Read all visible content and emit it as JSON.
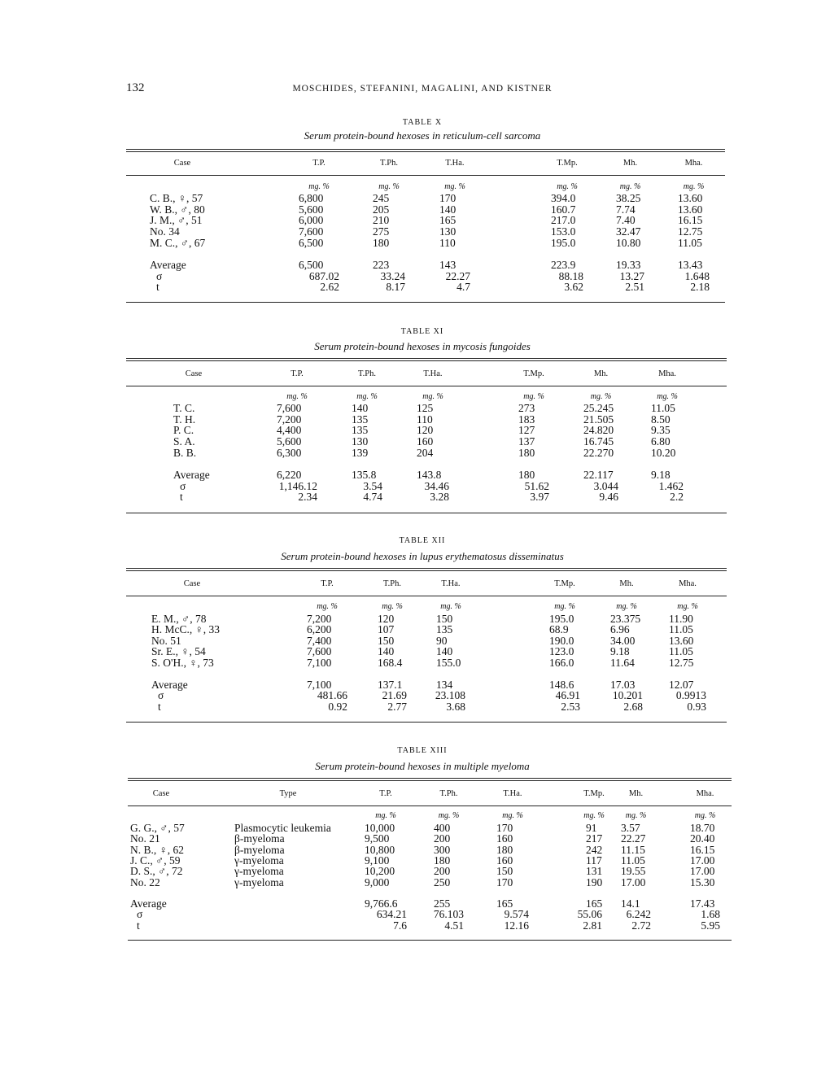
{
  "page_number": "132",
  "running_head": "MOSCHIDES, STEFANINI, MAGALINI, AND KISTNER",
  "tables": [
    {
      "title": "TABLE X",
      "caption": "Serum protein-bound hexoses in reticulum-cell sarcoma",
      "columns": [
        "Case",
        "T.P.",
        "T.Ph.",
        "T.Ha.",
        "T.Mp.",
        "Mh.",
        "Mha."
      ],
      "units": [
        "mg. %",
        "mg. %",
        "mg. %",
        "mg. %",
        "mg. %",
        "mg. %"
      ],
      "rows": [
        [
          "C. B., ♀, 57",
          "6,800",
          "245",
          "170",
          "394.0",
          "38.25",
          "13.60"
        ],
        [
          "W. B., ♂, 80",
          "5,600",
          "205",
          "140",
          "160.7",
          "7.74",
          "13.60"
        ],
        [
          "J. M., ♂, 51",
          "6,000",
          "210",
          "165",
          "217.0",
          "7.40",
          "16.15"
        ],
        [
          "No. 34",
          "7,600",
          "275",
          "130",
          "153.0",
          "32.47",
          "12.75"
        ],
        [
          "M. C., ♂, 67",
          "6,500",
          "180",
          "110",
          "195.0",
          "10.80",
          "11.05"
        ]
      ],
      "stats": [
        [
          "Average",
          "6,500",
          "223",
          "143",
          "223.9",
          "19.33",
          "13.43"
        ],
        [
          "σ",
          "687.02",
          "33.24",
          "22.27",
          "88.18",
          "13.27",
          "1.648"
        ],
        [
          "t",
          "2.62",
          "8.17",
          "4.7",
          "3.62",
          "2.51",
          "2.18"
        ]
      ]
    },
    {
      "title": "TABLE XI",
      "caption": "Serum protein-bound hexoses in mycosis fungoides",
      "columns": [
        "Case",
        "T.P.",
        "T.Ph.",
        "T.Ha.",
        "T.Mp.",
        "Mh.",
        "Mha."
      ],
      "units": [
        "mg. %",
        "mg. %",
        "mg. %",
        "mg. %",
        "mg. %",
        "mg. %"
      ],
      "rows": [
        [
          "T. C.",
          "7,600",
          "140",
          "125",
          "273",
          "25.245",
          "11.05"
        ],
        [
          "T. H.",
          "7,200",
          "135",
          "110",
          "183",
          "21.505",
          "8.50"
        ],
        [
          "P. C.",
          "4,400",
          "135",
          "120",
          "127",
          "24.820",
          "9.35"
        ],
        [
          "S. A.",
          "5,600",
          "130",
          "160",
          "137",
          "16.745",
          "6.80"
        ],
        [
          "B. B.",
          "6,300",
          "139",
          "204",
          "180",
          "22.270",
          "10.20"
        ]
      ],
      "stats": [
        [
          "Average",
          "6,220",
          "135.8",
          "143.8",
          "180",
          "22.117",
          "9.18"
        ],
        [
          "σ",
          "1,146.12",
          "3.54",
          "34.46",
          "51.62",
          "3.044",
          "1.462"
        ],
        [
          "t",
          "2.34",
          "4.74",
          "3.28",
          "3.97",
          "9.46",
          "2.2"
        ]
      ]
    },
    {
      "title": "TABLE XII",
      "caption": "Serum protein-bound hexoses in lupus erythematosus disseminatus",
      "columns": [
        "Case",
        "T.P.",
        "T.Ph.",
        "T.Ha.",
        "T.Mp.",
        "Mh.",
        "Mha."
      ],
      "units": [
        "mg. %",
        "mg. %",
        "mg. %",
        "mg. %",
        "mg. %",
        "mg. %"
      ],
      "rows": [
        [
          "E. M., ♂, 78",
          "7,200",
          "120",
          "150",
          "195.0",
          "23.375",
          "11.90"
        ],
        [
          "H. McC., ♀, 33",
          "6,200",
          "107",
          "135",
          "68.9",
          "6.96",
          "11.05"
        ],
        [
          "No. 51",
          "7,400",
          "150",
          "90",
          "190.0",
          "34.00",
          "13.60"
        ],
        [
          "Sr. E., ♀, 54",
          "7,600",
          "140",
          "140",
          "123.0",
          "9.18",
          "11.05"
        ],
        [
          "S. O'H., ♀, 73",
          "7,100",
          "168.4",
          "155.0",
          "166.0",
          "11.64",
          "12.75"
        ]
      ],
      "stats": [
        [
          "Average",
          "7,100",
          "137.1",
          "134",
          "148.6",
          "17.03",
          "12.07"
        ],
        [
          "σ",
          "481.66",
          "21.69",
          "23.108",
          "46.91",
          "10.201",
          "0.9913"
        ],
        [
          "t",
          "0.92",
          "2.77",
          "3.68",
          "2.53",
          "2.68",
          "0.93"
        ]
      ]
    },
    {
      "title": "TABLE XIII",
      "caption": "Serum protein-bound hexoses in multiple myeloma",
      "columns": [
        "Case",
        "Type",
        "T.P.",
        "T.Ph.",
        "T.Ha.",
        "T.Mp.",
        "Mh.",
        "Mha."
      ],
      "units": [
        "",
        "mg. %",
        "mg. %",
        "mg. %",
        "mg. %",
        "mg. %",
        "mg. %"
      ],
      "rows": [
        [
          "G. G., ♂, 57",
          "Plasmocytic leukemia",
          "10,000",
          "400",
          "170",
          "91",
          "3.57",
          "18.70"
        ],
        [
          "No. 21",
          "β-myeloma",
          "9,500",
          "200",
          "160",
          "217",
          "22.27",
          "20.40"
        ],
        [
          "N. B., ♀, 62",
          "β-myeloma",
          "10,800",
          "300",
          "180",
          "242",
          "11.15",
          "16.15"
        ],
        [
          "J. C., ♂, 59",
          "γ-myeloma",
          "9,100",
          "180",
          "160",
          "117",
          "11.05",
          "17.00"
        ],
        [
          "D. S., ♂, 72",
          "γ-myeloma",
          "10,200",
          "200",
          "150",
          "131",
          "19.55",
          "17.00"
        ],
        [
          "No. 22",
          "γ-myeloma",
          "9,000",
          "250",
          "170",
          "190",
          "17.00",
          "15.30"
        ]
      ],
      "stats": [
        [
          "Average",
          "",
          "9,766.6",
          "255",
          "165",
          "165",
          "14.1",
          "17.43"
        ],
        [
          "σ",
          "",
          "634.21",
          "76.103",
          "9.574",
          "55.06",
          "6.242",
          "1.68"
        ],
        [
          "t",
          "",
          "7.6",
          "4.51",
          "12.16",
          "2.81",
          "2.72",
          "5.95"
        ]
      ]
    }
  ]
}
